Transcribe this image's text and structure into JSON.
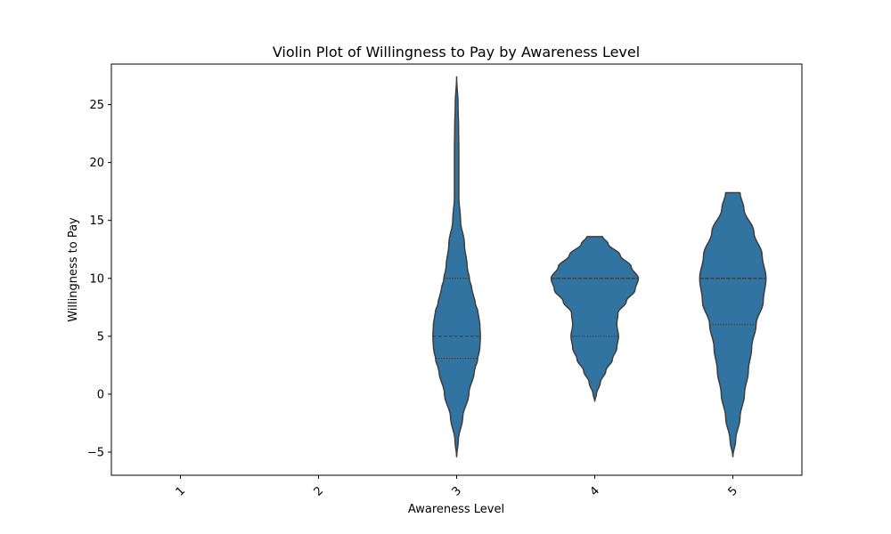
{
  "chart_data": {
    "type": "violin",
    "title": "Violin Plot of Willingness to Pay by Awareness Level",
    "xlabel": "Awareness Level",
    "ylabel": "Willingness to Pay",
    "categories": [
      "1",
      "2",
      "3",
      "4",
      "5"
    ],
    "ylim": [
      -7,
      28.5
    ],
    "yticks": [
      -5,
      0,
      5,
      10,
      15,
      20,
      25
    ],
    "ytick_labels": [
      "−5",
      "0",
      "5",
      "10",
      "15",
      "20",
      "25"
    ],
    "fill_color": "#3274a1",
    "edge_color": "#3d3d3d",
    "violins": [
      {
        "category": "3",
        "min": -5.4,
        "max": 27.4,
        "quartiles": [
          3.1,
          5.0,
          10.0
        ],
        "profile": [
          [
            -5.4,
            0.0
          ],
          [
            -4.0,
            0.03
          ],
          [
            -2.0,
            0.11
          ],
          [
            0.0,
            0.22
          ],
          [
            2.0,
            0.32
          ],
          [
            3.0,
            0.38
          ],
          [
            4.0,
            0.42
          ],
          [
            5.0,
            0.43
          ],
          [
            6.0,
            0.42
          ],
          [
            7.0,
            0.39
          ],
          [
            8.0,
            0.33
          ],
          [
            9.0,
            0.28
          ],
          [
            10.0,
            0.23
          ],
          [
            11.0,
            0.19
          ],
          [
            13.0,
            0.14
          ],
          [
            15.0,
            0.07
          ],
          [
            17.0,
            0.04
          ],
          [
            19.0,
            0.04
          ],
          [
            21.0,
            0.04
          ],
          [
            23.0,
            0.035
          ],
          [
            25.0,
            0.025
          ],
          [
            27.4,
            0.0
          ]
        ]
      },
      {
        "category": "4",
        "min": -0.6,
        "max": 13.6,
        "quartiles": [
          5.0,
          10.0,
          10.0
        ],
        "profile": [
          [
            -0.6,
            0.0
          ],
          [
            0.0,
            0.03
          ],
          [
            1.0,
            0.1
          ],
          [
            2.0,
            0.2
          ],
          [
            3.0,
            0.32
          ],
          [
            4.0,
            0.4
          ],
          [
            5.0,
            0.43
          ],
          [
            6.0,
            0.4
          ],
          [
            7.0,
            0.42
          ],
          [
            8.0,
            0.57
          ],
          [
            9.0,
            0.73
          ],
          [
            10.0,
            0.79
          ],
          [
            11.0,
            0.66
          ],
          [
            12.0,
            0.46
          ],
          [
            13.0,
            0.24
          ],
          [
            13.6,
            0.14
          ]
        ]
      },
      {
        "category": "5",
        "min": -5.4,
        "max": 17.4,
        "quartiles": [
          6.0,
          10.0,
          10.0
        ],
        "profile": [
          [
            -5.4,
            0.0
          ],
          [
            -4.0,
            0.05
          ],
          [
            -2.0,
            0.13
          ],
          [
            0.0,
            0.21
          ],
          [
            2.0,
            0.28
          ],
          [
            4.0,
            0.34
          ],
          [
            6.0,
            0.42
          ],
          [
            8.0,
            0.55
          ],
          [
            10.0,
            0.6
          ],
          [
            12.0,
            0.53
          ],
          [
            14.0,
            0.38
          ],
          [
            16.0,
            0.2
          ],
          [
            17.4,
            0.13
          ]
        ]
      }
    ]
  }
}
